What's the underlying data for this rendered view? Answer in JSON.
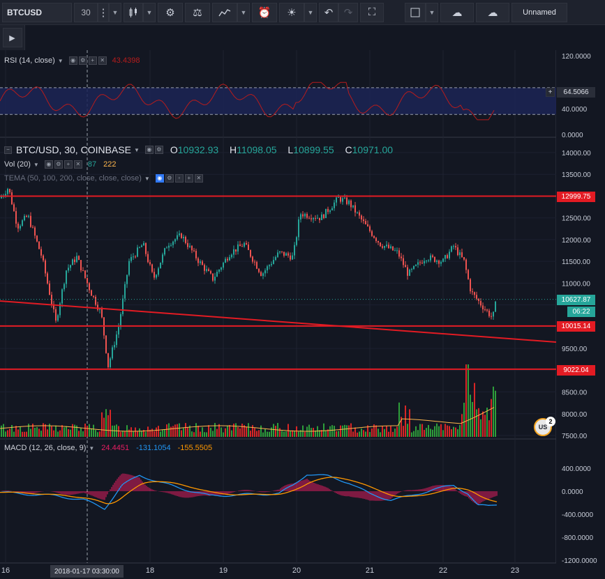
{
  "toolbar": {
    "symbol": "BTCUSD",
    "interval": "30",
    "layout_name": "Unnamed",
    "icons": [
      "more-vert-icon",
      "caret-icon",
      "candles-icon",
      "caret-icon",
      "gear-icon",
      "scales-icon",
      "indicators-icon",
      "caret-icon",
      "alarm-add-icon",
      "bulb-icon",
      "caret-icon",
      "undo-icon",
      "redo-icon",
      "fullscreen-icon",
      "square-icon",
      "caret-icon",
      "cloud-down-icon",
      "cloud-up-icon"
    ]
  },
  "rsi": {
    "label": "RSI (14, close)",
    "value": "43.4398",
    "axis_ticks": [
      "120.0000",
      "40.0000",
      "0.0000"
    ],
    "current_tag": "64.5066",
    "upper_band": 70,
    "lower_band": 30,
    "color_line": "#b71c1c"
  },
  "main": {
    "title": "BTC/USD, 30, COINBASE",
    "open_label": "O",
    "open": "10932.93",
    "high_label": "H",
    "high": "11098.05",
    "low_label": "L",
    "low": "10899.55",
    "close_label": "C",
    "close": "10971.00",
    "vol_label": "Vol (20)",
    "vol_value1": "87",
    "vol_value2": "222",
    "tema_label": "TEMA (50, 100, 200, close, close, close)",
    "axis_ticks": [
      "14000.00",
      "13500.00",
      "13000.00",
      "12500.00",
      "12000.00",
      "11500.00",
      "11000.00",
      "10500.00",
      "10000.00",
      "9500.00",
      "9000.00",
      "8500.00",
      "8000.00",
      "7500.00"
    ],
    "tags": {
      "level1": "12999.75",
      "current": "10627.87",
      "countdown": "06:22",
      "level2": "10015.14",
      "level3": "9022.04"
    },
    "colors": {
      "up": "#26a69a",
      "down": "#ef5350",
      "level": "#e31b23",
      "vol_up": "#2e9e3a",
      "vol_down": "#d92626"
    },
    "badge_count": "2"
  },
  "macd": {
    "label": "MACD (12, 26, close, 9)",
    "hist": "24.4451",
    "macd": "-131.1054",
    "signal": "-155.5505",
    "axis_ticks": [
      "400.0000",
      "0.0000",
      "-400.0000",
      "-800.0000",
      "-1200.0000"
    ],
    "colors": {
      "hist": "#e91e63",
      "macd": "#2196f3",
      "signal": "#ff9800"
    }
  },
  "time_axis": {
    "ticks": [
      "16",
      "18",
      "19",
      "20",
      "21",
      "22",
      "23"
    ],
    "cursor_label": "2018-01-17 03:30:00"
  }
}
